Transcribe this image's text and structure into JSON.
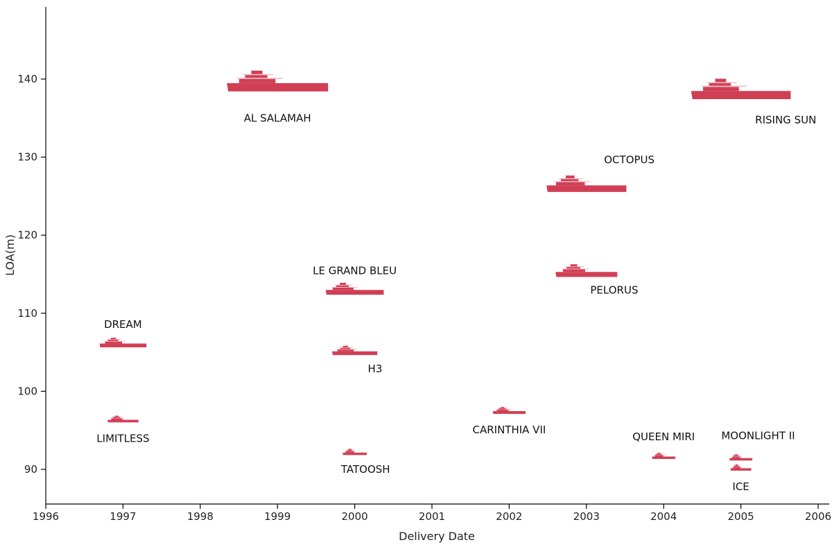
{
  "chart_data": {
    "type": "scatter",
    "title": "",
    "xlabel": "Delivery Date",
    "ylabel": "LOA(m)",
    "xlim": [
      1996,
      2006.2
    ],
    "ylim": [
      86,
      150
    ],
    "x_ticks": [
      "1996",
      "1997",
      "1998",
      "1999",
      "2000",
      "2001",
      "2002",
      "2003",
      "2004",
      "2005",
      "2006"
    ],
    "y_ticks": [
      "90",
      "100",
      "110",
      "120",
      "130",
      "140"
    ],
    "marker_color": "#d13f55",
    "marker_light_color": "#f0b7c1",
    "grid": false,
    "series": [
      {
        "points": [
          {
            "name": "AL SALAMAH",
            "x": 1999.0,
            "y": 139.0,
            "label_pos": "below"
          },
          {
            "name": "RISING SUN",
            "x": 2005.0,
            "y": 138.0,
            "label_pos": "below-right"
          },
          {
            "name": "OCTOPUS",
            "x": 2003.0,
            "y": 126.0,
            "label_pos": "above-right"
          },
          {
            "name": "LE GRAND BLEU",
            "x": 2000.0,
            "y": 112.7,
            "label_pos": "above"
          },
          {
            "name": "PELORUS",
            "x": 2003.0,
            "y": 115.0,
            "label_pos": "below-right"
          },
          {
            "name": "DREAM",
            "x": 1997.0,
            "y": 105.9,
            "label_pos": "above"
          },
          {
            "name": "H3",
            "x": 2000.0,
            "y": 104.9,
            "label_pos": "below-right"
          },
          {
            "name": "LIMITLESS",
            "x": 1997.0,
            "y": 96.2,
            "label_pos": "below"
          },
          {
            "name": "CARINTHIA VII",
            "x": 2002.0,
            "y": 97.3,
            "label_pos": "below"
          },
          {
            "name": "QUEEN MIRI",
            "x": 2004.0,
            "y": 91.5,
            "label_pos": "above"
          },
          {
            "name": "MOONLIGHT II",
            "x": 2005.0,
            "y": 91.3,
            "label_pos": "above-right"
          },
          {
            "name": "TATOOSH",
            "x": 2000.0,
            "y": 92.0,
            "label_pos": "below-right"
          },
          {
            "name": "ICE",
            "x": 2005.0,
            "y": 90.0,
            "label_pos": "below"
          }
        ]
      }
    ]
  }
}
